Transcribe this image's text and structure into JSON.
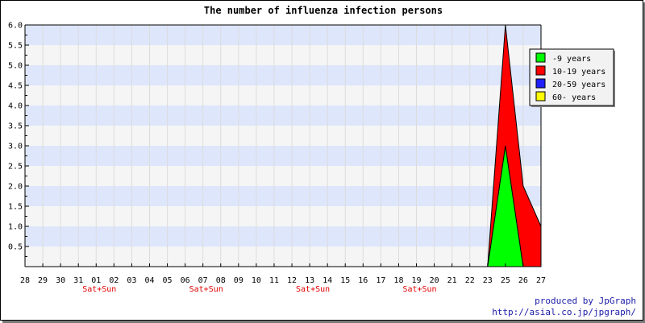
{
  "chart_data": {
    "type": "area",
    "title": "The number of influenza infection persons",
    "categories": [
      "28",
      "29",
      "30",
      "31",
      "01",
      "02",
      "03",
      "04",
      "05",
      "06",
      "07",
      "08",
      "09",
      "10",
      "11",
      "12",
      "13",
      "14",
      "15",
      "16",
      "17",
      "18",
      "19",
      "20",
      "21",
      "22",
      "23",
      "25",
      "26",
      "27"
    ],
    "weekend_labels": [
      {
        "category": "01",
        "text": "Sat+Sun"
      },
      {
        "category": "07",
        "text": "Sat+Sun"
      },
      {
        "category": "13",
        "text": "Sat+Sun"
      },
      {
        "category": "19",
        "text": "Sat+Sun"
      }
    ],
    "series": [
      {
        "name": "-9 years",
        "color": "#00ff00",
        "values": [
          0,
          0,
          0,
          0,
          0,
          0,
          0,
          0,
          0,
          0,
          0,
          0,
          0,
          0,
          0,
          0,
          0,
          0,
          0,
          0,
          0,
          0,
          0,
          0,
          0,
          0,
          0,
          3,
          0,
          0
        ]
      },
      {
        "name": "10-19 years",
        "color": "#ff0000",
        "values": [
          0,
          0,
          0,
          0,
          0,
          0,
          0,
          0,
          0,
          0,
          0,
          0,
          0,
          0,
          0,
          0,
          0,
          0,
          0,
          0,
          0,
          0,
          0,
          0,
          0,
          0,
          0,
          3,
          2,
          1
        ]
      },
      {
        "name": "20-59 years",
        "color": "#2020ff",
        "values": [
          0,
          0,
          0,
          0,
          0,
          0,
          0,
          0,
          0,
          0,
          0,
          0,
          0,
          0,
          0,
          0,
          0,
          0,
          0,
          0,
          0,
          0,
          0,
          0,
          0,
          0,
          0,
          0,
          0,
          0
        ]
      },
      {
        "name": "60- years",
        "color": "#ffff00",
        "values": [
          0,
          0,
          0,
          0,
          0,
          0,
          0,
          0,
          0,
          0,
          0,
          0,
          0,
          0,
          0,
          0,
          0,
          0,
          0,
          0,
          0,
          0,
          0,
          0,
          0,
          0,
          0,
          0,
          0,
          0
        ]
      }
    ],
    "stacked": true,
    "ylim": [
      0,
      6
    ],
    "yticks": [
      "0.5",
      "1.0",
      "1.5",
      "2.0",
      "2.5",
      "3.0",
      "3.5",
      "4.0",
      "4.5",
      "5.0",
      "5.5",
      "6.0"
    ],
    "band_colors": [
      "#f5f5f5",
      "#dde6fb"
    ],
    "legend_position": "top-right"
  },
  "credits": {
    "line1": "produced by JpGraph",
    "line2": "http://asial.co.jp/jpgraph/"
  }
}
